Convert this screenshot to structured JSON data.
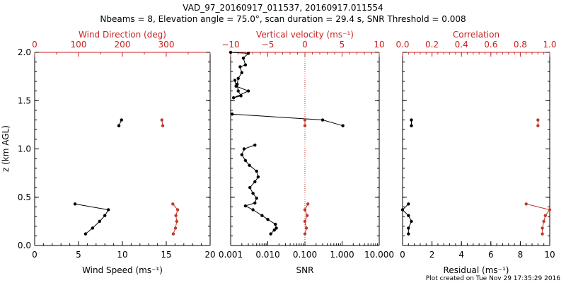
{
  "title_line1": "VAD_97_20160917_011537, 20160917.011554",
  "title_line2": "Nbeams = 8, Elevation angle = 75.0°, scan duration = 29.4 s, SNR Threshold = 0.008",
  "footer": "Plot created on Tue Nov 29 17:35:29 2016",
  "colors": {
    "black": "#000000",
    "red": "#c0392b",
    "red_axis": "#cc2222"
  },
  "chart_data": [
    {
      "type": "scatter",
      "name": "wind-panel",
      "ylabel": "z (km AGL)",
      "ylim": [
        0,
        2
      ],
      "yticks": [
        "0.0",
        "0.5",
        "1.0",
        "1.5",
        "2.0"
      ],
      "bottom_axis": {
        "label": "Wind Speed (ms⁻¹)",
        "range": [
          0,
          20
        ],
        "ticks": [
          "0",
          "5",
          "10",
          "15",
          "20"
        ]
      },
      "top_axis": {
        "label": "Wind Direction (deg)",
        "range": [
          0,
          400
        ],
        "ticks": [
          "0",
          "100",
          "200",
          "300"
        ]
      },
      "series": [
        {
          "name": "Wind Speed",
          "color": "black",
          "axis": "bottom",
          "segments": [
            [
              [
                4.6,
                0.43
              ],
              [
                8.4,
                0.37
              ],
              [
                8.0,
                0.31
              ],
              [
                7.4,
                0.25
              ],
              [
                6.6,
                0.18
              ],
              [
                5.8,
                0.12
              ]
            ],
            [
              [
                9.9,
                1.3
              ],
              [
                9.6,
                1.24
              ]
            ]
          ]
        },
        {
          "name": "Wind Direction",
          "color": "red",
          "axis": "top",
          "segments": [
            [
              [
                315,
                0.43
              ],
              [
                326,
                0.37
              ],
              [
                322,
                0.31
              ],
              [
                324,
                0.25
              ],
              [
                321,
                0.18
              ],
              [
                316,
                0.12
              ]
            ],
            [
              [
                290,
                1.3
              ],
              [
                292,
                1.24
              ]
            ]
          ]
        }
      ]
    },
    {
      "type": "line",
      "name": "snr-panel",
      "ylim": [
        0,
        2
      ],
      "bottom_axis": {
        "label": "SNR",
        "scale": "log",
        "range": [
          0.001,
          10
        ],
        "ticks": [
          "0.001",
          "0.010",
          "0.100",
          "1.000",
          "10.000"
        ]
      },
      "top_axis": {
        "label": "Vertical velocity (ms⁻¹)",
        "range": [
          -10,
          10
        ],
        "ticks": [
          "−10",
          "−5",
          "0",
          "5",
          "10"
        ]
      },
      "threshold": {
        "value": 0.1,
        "style": "dotted-red"
      },
      "series": [
        {
          "name": "SNR",
          "color": "black",
          "axis": "bottom",
          "segments": [
            [
              [
                0.001,
                2.0
              ],
              [
                0.003,
                1.99
              ],
              [
                0.0022,
                1.94
              ],
              [
                0.0025,
                1.87
              ],
              [
                0.0018,
                1.85
              ],
              [
                0.002,
                1.79
              ],
              [
                0.0016,
                1.73
              ],
              [
                0.0015,
                1.67
              ],
              [
                0.0016,
                1.6
              ],
              [
                0.0019,
                1.55
              ],
              [
                0.0012,
                1.53
              ],
              [
                0.003,
                1.6
              ],
              [
                0.0014,
                1.65
              ],
              [
                0.0013,
                1.71
              ]
            ],
            [
              [
                0.0011,
                1.36
              ],
              [
                0.3,
                1.3
              ],
              [
                1.05,
                1.24
              ]
            ],
            [
              [
                0.0045,
                1.04
              ],
              [
                0.0023,
                1.0
              ],
              [
                0.002,
                0.94
              ],
              [
                0.0025,
                0.88
              ],
              [
                0.0032,
                0.83
              ],
              [
                0.005,
                0.77
              ],
              [
                0.0055,
                0.71
              ],
              [
                0.0045,
                0.66
              ],
              [
                0.0033,
                0.6
              ],
              [
                0.004,
                0.54
              ],
              [
                0.005,
                0.49
              ],
              [
                0.0045,
                0.44
              ],
              [
                0.0025,
                0.41
              ],
              [
                0.004,
                0.37
              ],
              [
                0.007,
                0.31
              ],
              [
                0.01,
                0.27
              ],
              [
                0.016,
                0.22
              ],
              [
                0.017,
                0.18
              ],
              [
                0.015,
                0.16
              ],
              [
                0.012,
                0.12
              ]
            ]
          ]
        },
        {
          "name": "Vertical velocity",
          "color": "red",
          "axis": "top",
          "segments": [
            [
              [
                0.4,
                0.43
              ],
              [
                0.0,
                0.37
              ],
              [
                0.3,
                0.31
              ],
              [
                0.0,
                0.25
              ],
              [
                0.2,
                0.18
              ],
              [
                0.0,
                0.12
              ]
            ],
            [
              [
                0.0,
                1.3
              ],
              [
                0.0,
                1.24
              ]
            ]
          ]
        }
      ]
    },
    {
      "type": "scatter",
      "name": "residual-panel",
      "ylim": [
        0,
        2
      ],
      "bottom_axis": {
        "label": "Residual (ms⁻¹)",
        "range": [
          0,
          10
        ],
        "ticks": [
          "0",
          "2",
          "4",
          "6",
          "8",
          "10"
        ]
      },
      "top_axis": {
        "label": "Correlation",
        "range": [
          0,
          1
        ],
        "ticks": [
          "0.0",
          "0.2",
          "0.4",
          "0.6",
          "0.8",
          "1.0"
        ]
      },
      "series": [
        {
          "name": "Residual",
          "color": "black",
          "axis": "bottom",
          "segments": [
            [
              [
                0.4,
                0.43
              ],
              [
                0.0,
                0.37
              ],
              [
                0.4,
                0.31
              ],
              [
                0.6,
                0.25
              ],
              [
                0.4,
                0.18
              ],
              [
                0.4,
                0.12
              ]
            ],
            [
              [
                0.6,
                1.3
              ],
              [
                0.6,
                1.24
              ]
            ]
          ]
        },
        {
          "name": "Correlation",
          "color": "red",
          "axis": "top",
          "segments": [
            [
              [
                0.84,
                0.43
              ],
              [
                1.0,
                0.37
              ],
              [
                0.97,
                0.31
              ],
              [
                0.96,
                0.25
              ],
              [
                0.95,
                0.18
              ],
              [
                0.95,
                0.12
              ]
            ],
            [
              [
                0.92,
                1.3
              ],
              [
                0.92,
                1.24
              ]
            ]
          ]
        }
      ]
    }
  ]
}
